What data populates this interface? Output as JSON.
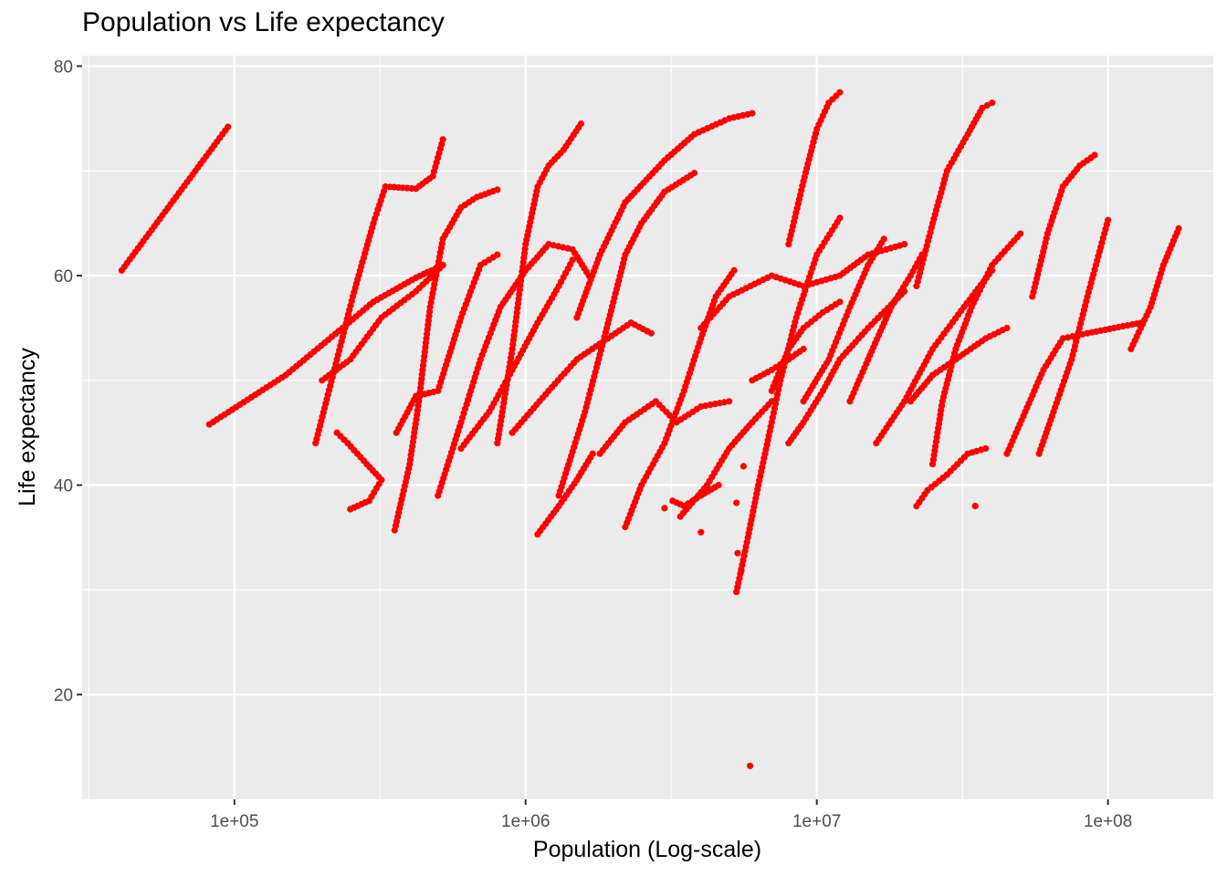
{
  "chart_data": {
    "type": "scatter",
    "title": "Population vs Life expectancy",
    "xlabel": "Population (Log-scale)",
    "ylabel": "Life expectancy",
    "x_scale": "log10",
    "xlim": [
      30000,
      230000000
    ],
    "ylim": [
      10,
      81
    ],
    "x_ticks": [
      {
        "value": 100000,
        "label": "1e+05"
      },
      {
        "value": 1000000,
        "label": "1e+06"
      },
      {
        "value": 10000000,
        "label": "1e+07"
      },
      {
        "value": 100000000,
        "label": "1e+08"
      }
    ],
    "y_ticks": [
      {
        "value": 20,
        "label": "20"
      },
      {
        "value": 40,
        "label": "40"
      },
      {
        "value": 60,
        "label": "60"
      },
      {
        "value": 80,
        "label": "80"
      }
    ],
    "point_color": "#FF0000",
    "panel_background": "#EBEBEB",
    "grid_color": "#FFFFFF",
    "grid": true,
    "legend": "none",
    "traces": [
      {
        "points": [
          [
            41000,
            60.5
          ],
          [
            95000,
            74.2
          ]
        ]
      },
      {
        "points": [
          [
            82000,
            45.8
          ],
          [
            150000,
            50.5
          ],
          [
            235000,
            55.0
          ],
          [
            300000,
            57.5
          ],
          [
            420000,
            59.8
          ],
          [
            520000,
            61.0
          ]
        ]
      },
      {
        "points": [
          [
            190000,
            44.0
          ],
          [
            225000,
            52.0
          ],
          [
            255000,
            58.0
          ],
          [
            300000,
            65.0
          ],
          [
            330000,
            68.5
          ],
          [
            420000,
            68.3
          ],
          [
            480000,
            69.5
          ],
          [
            520000,
            73.0
          ]
        ]
      },
      {
        "points": [
          [
            200000,
            50.0
          ],
          [
            250000,
            52.0
          ],
          [
            320000,
            56.0
          ],
          [
            420000,
            58.5
          ],
          [
            520000,
            61.0
          ]
        ]
      },
      {
        "points": [
          [
            225000,
            45.0
          ],
          [
            245000,
            44.0
          ],
          [
            285000,
            42.0
          ],
          [
            320000,
            40.5
          ],
          [
            290000,
            38.5
          ],
          [
            250000,
            37.7
          ]
        ]
      },
      {
        "points": [
          [
            355000,
            35.7
          ],
          [
            400000,
            42.0
          ],
          [
            430000,
            48.0
          ],
          [
            470000,
            57.0
          ],
          [
            520000,
            63.5
          ],
          [
            600000,
            66.5
          ],
          [
            680000,
            67.5
          ],
          [
            800000,
            68.2
          ]
        ]
      },
      {
        "points": [
          [
            360000,
            45.0
          ],
          [
            420000,
            48.5
          ],
          [
            500000,
            49.0
          ],
          [
            600000,
            56.0
          ],
          [
            700000,
            61.0
          ],
          [
            800000,
            62.0
          ]
        ]
      },
      {
        "points": [
          [
            500000,
            39.0
          ],
          [
            600000,
            46.0
          ],
          [
            700000,
            52.0
          ],
          [
            820000,
            57.0
          ],
          [
            1000000,
            60.5
          ],
          [
            1200000,
            63.0
          ],
          [
            1450000,
            62.5
          ],
          [
            1650000,
            60.0
          ]
        ]
      },
      {
        "points": [
          [
            600000,
            43.5
          ],
          [
            750000,
            47.0
          ],
          [
            900000,
            51.0
          ],
          [
            1100000,
            55.5
          ],
          [
            1300000,
            59.0
          ],
          [
            1450000,
            61.5
          ]
        ]
      },
      {
        "points": [
          [
            800000,
            44.0
          ],
          [
            900000,
            53.0
          ],
          [
            1000000,
            63.0
          ],
          [
            1100000,
            68.5
          ],
          [
            1200000,
            70.5
          ],
          [
            1350000,
            72.0
          ],
          [
            1550000,
            74.5
          ]
        ]
      },
      {
        "points": [
          [
            1100000,
            35.3
          ],
          [
            1300000,
            38.0
          ],
          [
            1500000,
            40.5
          ],
          [
            1700000,
            43.0
          ]
        ]
      },
      {
        "points": [
          [
            900000,
            45.0
          ],
          [
            1200000,
            49.0
          ],
          [
            1500000,
            52.0
          ],
          [
            1800000,
            53.5
          ],
          [
            2300000,
            55.5
          ],
          [
            2700000,
            54.5
          ]
        ]
      },
      {
        "points": [
          [
            1300000,
            39.0
          ],
          [
            1600000,
            47.0
          ],
          [
            1900000,
            55.0
          ],
          [
            2200000,
            62.0
          ],
          [
            2500000,
            65.0
          ],
          [
            3000000,
            68.0
          ],
          [
            3800000,
            69.8
          ]
        ]
      },
      {
        "points": [
          [
            1500000,
            56.0
          ],
          [
            1800000,
            62.0
          ],
          [
            2200000,
            67.0
          ],
          [
            3000000,
            71.0
          ],
          [
            3800000,
            73.5
          ],
          [
            5000000,
            75.0
          ],
          [
            6000000,
            75.5
          ]
        ]
      },
      {
        "points": [
          [
            1800000,
            43.0
          ],
          [
            2200000,
            46.0
          ],
          [
            2800000,
            48.0
          ],
          [
            3300000,
            46.0
          ],
          [
            4000000,
            47.5
          ],
          [
            5000000,
            48.0
          ]
        ]
      },
      {
        "points": [
          [
            2200000,
            36.0
          ],
          [
            2500000,
            40.0
          ],
          [
            3000000,
            44.0
          ],
          [
            3500000,
            49.0
          ],
          [
            4000000,
            54.0
          ],
          [
            4500000,
            58.0
          ],
          [
            5200000,
            60.5
          ]
        ]
      },
      {
        "points": [
          [
            3200000,
            38.5
          ],
          [
            3500000,
            38.0
          ],
          [
            4000000,
            39.0
          ],
          [
            4600000,
            40.0
          ]
        ]
      },
      {
        "points": [
          [
            3400000,
            37.0
          ],
          [
            4200000,
            40.0
          ],
          [
            5000000,
            43.5
          ],
          [
            6000000,
            46.0
          ],
          [
            7000000,
            48.0
          ]
        ]
      },
      {
        "points": [
          [
            5300000,
            29.8
          ],
          [
            5800000,
            35.0
          ],
          [
            6300000,
            40.0
          ],
          [
            7000000,
            46.0
          ],
          [
            7500000,
            50.0
          ],
          [
            8500000,
            56.0
          ],
          [
            10000000,
            62.0
          ],
          [
            12000000,
            65.5
          ]
        ]
      },
      {
        "points": [
          [
            7000000,
            49.0
          ],
          [
            8000000,
            53.0
          ],
          [
            9000000,
            55.0
          ],
          [
            10500000,
            56.5
          ],
          [
            12000000,
            57.5
          ]
        ]
      },
      {
        "points": [
          [
            8000000,
            63.0
          ],
          [
            9000000,
            69.0
          ],
          [
            10000000,
            74.0
          ],
          [
            11000000,
            76.5
          ],
          [
            12000000,
            77.5
          ]
        ]
      },
      {
        "points": [
          [
            8000000,
            44.0
          ],
          [
            9000000,
            46.0
          ],
          [
            10500000,
            49.0
          ],
          [
            12000000,
            52.0
          ],
          [
            15000000,
            55.0
          ],
          [
            20000000,
            58.5
          ]
        ]
      },
      {
        "points": [
          [
            9000000,
            48.0
          ],
          [
            11000000,
            52.0
          ],
          [
            13000000,
            57.0
          ],
          [
            15000000,
            61.0
          ],
          [
            17000000,
            63.5
          ]
        ]
      },
      {
        "points": [
          [
            13000000,
            48.0
          ],
          [
            15000000,
            52.0
          ],
          [
            18000000,
            57.0
          ],
          [
            21000000,
            60.0
          ],
          [
            23000000,
            62.0
          ]
        ]
      },
      {
        "points": [
          [
            16000000,
            44.0
          ],
          [
            20000000,
            48.0
          ],
          [
            25000000,
            53.0
          ],
          [
            32000000,
            57.0
          ],
          [
            40000000,
            60.5
          ]
        ]
      },
      {
        "points": [
          [
            21000000,
            48.0
          ],
          [
            25000000,
            50.5
          ],
          [
            30000000,
            52.0
          ],
          [
            38000000,
            54.0
          ],
          [
            45000000,
            55.0
          ]
        ]
      },
      {
        "points": [
          [
            22000000,
            59.0
          ],
          [
            25000000,
            65.0
          ],
          [
            28000000,
            70.0
          ],
          [
            33000000,
            73.5
          ],
          [
            37000000,
            76.0
          ],
          [
            40000000,
            76.5
          ]
        ]
      },
      {
        "points": [
          [
            25000000,
            42.0
          ],
          [
            27000000,
            48.0
          ],
          [
            30000000,
            53.0
          ],
          [
            34000000,
            57.0
          ],
          [
            40000000,
            61.0
          ],
          [
            50000000,
            64.0
          ]
        ]
      },
      {
        "points": [
          [
            22000000,
            38.0
          ],
          [
            24000000,
            39.5
          ],
          [
            28000000,
            41.0
          ],
          [
            33000000,
            43.0
          ],
          [
            38000000,
            43.5
          ]
        ]
      },
      {
        "points": [
          [
            45000000,
            43.0
          ],
          [
            52000000,
            47.0
          ],
          [
            60000000,
            51.0
          ],
          [
            70000000,
            54.0
          ],
          [
            85000000,
            54.5
          ],
          [
            105000000,
            55.0
          ],
          [
            130000000,
            55.5
          ]
        ]
      },
      {
        "points": [
          [
            55000000,
            58.0
          ],
          [
            62000000,
            64.0
          ],
          [
            70000000,
            68.5
          ],
          [
            80000000,
            70.5
          ],
          [
            90000000,
            71.5
          ]
        ]
      },
      {
        "points": [
          [
            58000000,
            43.0
          ],
          [
            65000000,
            47.0
          ],
          [
            75000000,
            52.0
          ],
          [
            85000000,
            58.0
          ],
          [
            100000000,
            65.3
          ]
        ]
      },
      {
        "points": [
          [
            120000000,
            53.0
          ],
          [
            140000000,
            57.0
          ],
          [
            155000000,
            61.0
          ],
          [
            175000000,
            64.5
          ]
        ]
      },
      {
        "points": [
          [
            4000000,
            55.0
          ],
          [
            5000000,
            58.0
          ],
          [
            7000000,
            60.0
          ],
          [
            9000000,
            59.0
          ],
          [
            12000000,
            60.0
          ],
          [
            15000000,
            62.0
          ],
          [
            20000000,
            63.0
          ]
        ]
      },
      {
        "points": [
          [
            6000000,
            50.0
          ],
          [
            7000000,
            51.0
          ],
          [
            8000000,
            52.0
          ],
          [
            9000000,
            53.0
          ]
        ]
      }
    ],
    "isolated_points": [
      [
        5900000,
        13.2
      ],
      [
        5500000,
        31.8
      ],
      [
        5350000,
        33.5
      ],
      [
        5300000,
        38.3
      ],
      [
        5600000,
        41.8
      ],
      [
        4000000,
        35.5
      ],
      [
        3000000,
        37.8
      ],
      [
        35000000,
        38.0
      ]
    ]
  }
}
